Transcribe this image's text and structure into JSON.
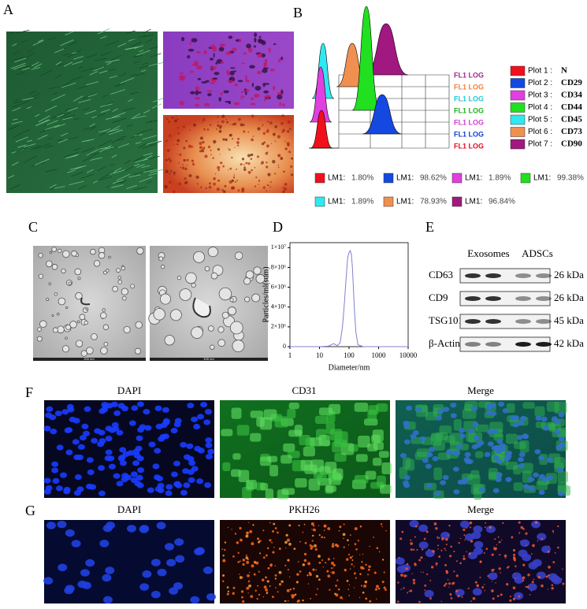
{
  "panel_a": {
    "label": "A"
  },
  "panel_b": {
    "label": "B",
    "fl_labels": [
      {
        "text": "FL1 LOG",
        "color": "#a0288c"
      },
      {
        "text": "FL1 LOG",
        "color": "#f08040"
      },
      {
        "text": "FL1 LOG",
        "color": "#20c8d8"
      },
      {
        "text": "FL1 LOG",
        "color": "#20b020"
      },
      {
        "text": "FL1 LOG",
        "color": "#d040d0"
      },
      {
        "text": "FL1 LOG",
        "color": "#1040d0"
      },
      {
        "text": "FL1 LOG",
        "color": "#e01020"
      }
    ],
    "plots": [
      {
        "name": "Plot 1 :",
        "marker": "N",
        "color": "#f0101c"
      },
      {
        "name": "Plot 2 :",
        "marker": "CD29",
        "color": "#1448e0"
      },
      {
        "name": "Plot 3 :",
        "marker": "CD34",
        "color": "#e040e0"
      },
      {
        "name": "Plot 4 :",
        "marker": "CD44",
        "color": "#20e020"
      },
      {
        "name": "Plot 5 :",
        "marker": "CD45",
        "color": "#30e8f0"
      },
      {
        "name": "Plot 6 :",
        "marker": "CD73",
        "color": "#f09050"
      },
      {
        "name": "Plot 7 :",
        "marker": "CD90",
        "color": "#a01880"
      }
    ],
    "stats": [
      {
        "name": "LM1:",
        "value": "1.80%",
        "color": "#f0101c"
      },
      {
        "name": "LM1:",
        "value": "98.62%",
        "color": "#1448e0"
      },
      {
        "name": "LM1:",
        "value": "1.89%",
        "color": "#e040e0"
      },
      {
        "name": "LM1:",
        "value": "99.38%",
        "color": "#20e020"
      },
      {
        "name": "LM1:",
        "value": "1.89%",
        "color": "#30e8f0"
      },
      {
        "name": "LM1:",
        "value": "78.93%",
        "color": "#f09050"
      },
      {
        "name": "LM1:",
        "value": "96.84%",
        "color": "#a01880"
      }
    ]
  },
  "panel_c": {
    "label": "C",
    "scale_bars": [
      "200 nm",
      "100 nm"
    ]
  },
  "panel_d": {
    "label": "D",
    "type": "line",
    "color": "#8080d0",
    "x_label": "Diameter/nm",
    "y_label": "Particles/ml(sum)",
    "x_scale": "log",
    "x": [
      1,
      5,
      10,
      20,
      30,
      40,
      50,
      60,
      70,
      80,
      90,
      100,
      110,
      120,
      130,
      140,
      150,
      170,
      200,
      300,
      1000,
      10000
    ],
    "values": [
      0,
      0,
      0,
      50000,
      300000,
      100000,
      400000,
      2000000,
      4500000,
      7000000,
      9000000,
      9500000,
      9700000,
      9300000,
      8000000,
      6000000,
      4000000,
      1500000,
      200000,
      0,
      0,
      0
    ],
    "xlim": [
      1,
      10000
    ],
    "ylim": [
      0,
      10500000
    ],
    "xticks": [
      1,
      10,
      100,
      1000,
      10000
    ],
    "yticks": [
      0,
      {
        "value": 2000000,
        "label": "2×10⁶"
      },
      {
        "value": 4000000,
        "label": "4×10⁶"
      },
      {
        "value": 6000000,
        "label": "6×10⁶"
      },
      {
        "value": 8000000,
        "label": "8×10⁶"
      },
      {
        "value": 10000000,
        "label": "1×10⁷"
      }
    ]
  },
  "panel_e": {
    "label": "E",
    "groups": [
      "Exosomes",
      "ADSCs"
    ],
    "rows": [
      {
        "protein": "CD63",
        "size": "26 kDa"
      },
      {
        "protein": "CD9",
        "size": "26 kDa"
      },
      {
        "protein": "TSG101",
        "size": "45 kDa"
      },
      {
        "protein": "β-Actin",
        "size": "42 kDa"
      }
    ]
  },
  "panel_f": {
    "label": "F",
    "titles": [
      "DAPI",
      "CD31",
      "Merge"
    ]
  },
  "panel_g": {
    "label": "G",
    "titles": [
      "DAPI",
      "PKH26",
      "Merge"
    ]
  }
}
